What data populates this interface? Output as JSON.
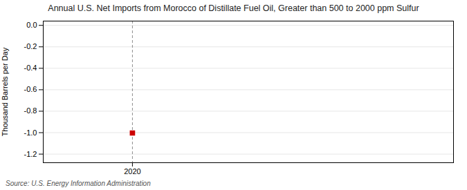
{
  "chart_data": {
    "type": "scatter",
    "title": "Annual U.S. Net Imports from Morocco of Distillate Fuel Oil, Greater than 500 to 2000 ppm Sulfur",
    "ylabel": "Thousand Barrels per Day",
    "source": "Source: U.S. Energy Information Administration",
    "x": [
      2020
    ],
    "values": [
      -1.003
    ],
    "color": "#cc0000",
    "marker": "square",
    "vline": 2020,
    "xlim": [
      2019.5,
      2021.8
    ],
    "xticks": [
      2020
    ],
    "ylim": [
      -1.28,
      0.04
    ],
    "yticks": [
      {
        "value": 0.0,
        "label": "0.0"
      },
      -0.2,
      -0.4,
      -0.6,
      -0.8,
      {
        "value": -1.0,
        "label": "-1.0"
      },
      {
        "value": -1.2,
        "label": "-1.2"
      }
    ],
    "grid": true
  }
}
